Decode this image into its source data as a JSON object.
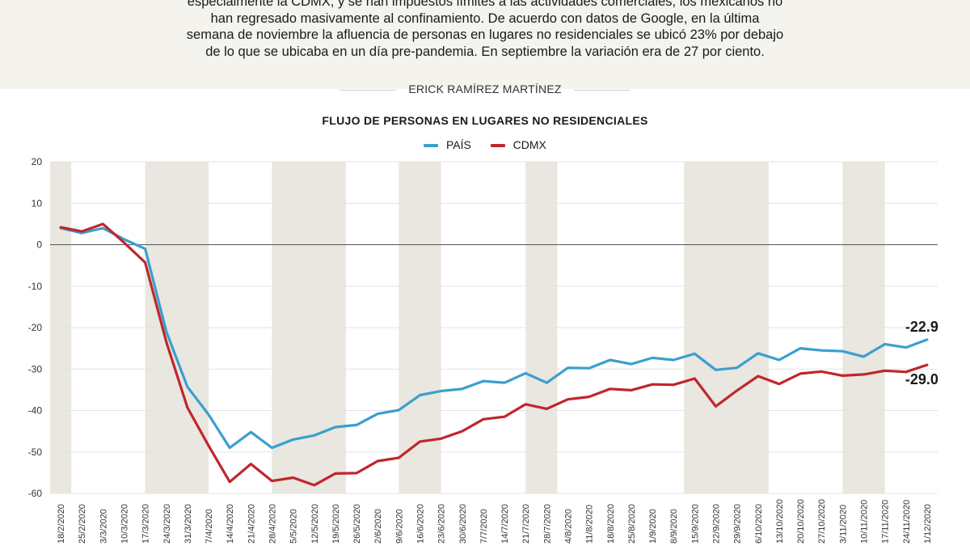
{
  "article": {
    "intro_lines": [
      "especialmente la CDMX, y se han impuestos límites a las actividades comerciales, los mexicanos no",
      "han regresado masivamente al confinamiento. De acuerdo con datos de Google, en la última",
      "semana  de noviembre la afluencia de personas en lugares no residenciales se ubicó 23% por debajo",
      "de lo que se ubicaba en un día pre-pandemia. En septiembre la variación era de 27 por ciento."
    ],
    "byline": "ERICK RAMÍREZ MARTÍNEZ"
  },
  "colors": {
    "pais": "#3a9fcf",
    "cdmx": "#c0262c",
    "band": "#e9e7df",
    "grid": "#e3e3e3",
    "zero": "#555555"
  },
  "chart_data": {
    "type": "line",
    "title": "FLUJO DE PERSONAS EN LUGARES NO RESIDENCIALES",
    "xlabel": "",
    "ylabel": "",
    "ylim": [
      -60,
      20
    ],
    "yticks": [
      20,
      10,
      0,
      -10,
      -20,
      -30,
      -40,
      -50,
      -60
    ],
    "grid": true,
    "legend_position": "top-center",
    "x": [
      "18/2/2020",
      "25/2/2020",
      "3/3/2020",
      "10/3/2020",
      "17/3/2020",
      "24/3/2020",
      "31/3/2020",
      "7/4/2020",
      "14/4/2020",
      "21/4/2020",
      "28/4/2020",
      "5/5/2020",
      "12/5/2020",
      "19/5/2020",
      "26/5/2020",
      "2/6/2020",
      "9/6/2020",
      "16/6/2020",
      "23/6/2020",
      "30/6/2020",
      "7/7/2020",
      "14/7/2020",
      "21/7/2020",
      "28/7/2020",
      "4/8/2020",
      "11/8/2020",
      "18/8/2020",
      "25/8/2020",
      "1/9/2020",
      "8/9/2020",
      "15/9/2020",
      "22/9/2020",
      "29/9/2020",
      "6/10/2020",
      "13/10/2020",
      "20/10/2020",
      "27/10/2020",
      "3/11/2020",
      "10/11/2020",
      "17/11/2020",
      "24/11/2020",
      "1/12/2020"
    ],
    "tick_labels_visible": [
      "18/2/2020",
      "25/2/2020",
      "3/3/2020",
      "10/3/2020",
      "17/3/2020",
      "24/3/2020",
      "31/3/2020",
      "7/4/2020",
      "14/4/2020",
      "21/4/2020",
      "28/4/2020",
      "5/5/2020",
      "12/5/2020",
      "19/5/2020",
      "26/5/2020",
      "2/6/2020",
      "9/6/2020",
      "16/6/2020",
      "23/6/2020",
      "30/6/2020",
      "7/7/2020",
      "14/7/2020",
      "21/7/2020",
      "28/7/2020",
      "4/8/2020",
      "11/8/2020",
      "18/8/2020",
      "25/8/2020",
      "1/9/2020",
      "8/9/2020",
      "15/9/2020",
      "22/9/2020",
      "29/9/2020",
      "6/10/2020",
      "13/10/2020",
      "20/10/2020",
      "27/10/2020",
      "3/11/2020",
      "10/11/2020",
      "17/11/2020",
      "24/11/2020",
      "1/12/2020"
    ],
    "shaded_ranges": [
      [
        0,
        2
      ],
      [
        9,
        15
      ],
      [
        21,
        28
      ],
      [
        33,
        37
      ],
      [
        45,
        48
      ],
      [
        60,
        68
      ],
      [
        75,
        79
      ]
    ],
    "series": [
      {
        "name": "PAÍS",
        "values": [
          4,
          2.8,
          4,
          1.3,
          -1,
          -21,
          -34.3,
          -41,
          -49,
          -45.2,
          -49,
          -47,
          -46,
          -44,
          -43.5,
          -40.8,
          -39.9,
          -36.3,
          -35.3,
          -34.8,
          -32.9,
          -33.3,
          -31,
          -33.3,
          -29.7,
          -29.8,
          -27.8,
          -28.8,
          -27.3,
          -27.8,
          -26.3,
          -30.2,
          -29.7,
          -26.2,
          -27.8,
          -25,
          -25.5,
          -25.7,
          -27,
          -24,
          -24.8,
          -22.9
        ]
      },
      {
        "name": "CDMX",
        "values": [
          4.2,
          3.2,
          5,
          0.5,
          -4.3,
          -23.5,
          -39.3,
          -48.5,
          -57.2,
          -52.9,
          -57,
          -56.2,
          -58,
          -55.2,
          -55.1,
          -52.2,
          -51.4,
          -47.5,
          -46.8,
          -45,
          -42.1,
          -41.5,
          -38.5,
          -39.6,
          -37.3,
          -36.7,
          -34.8,
          -35.1,
          -33.7,
          -33.8,
          -32.3,
          -39,
          -35.2,
          -31.7,
          -33.6,
          -31.1,
          -30.6,
          -31.6,
          -31.3,
          -30.4,
          -30.7,
          -29.0
        ]
      }
    ],
    "end_labels": [
      "-22.9",
      "-29.0"
    ]
  }
}
